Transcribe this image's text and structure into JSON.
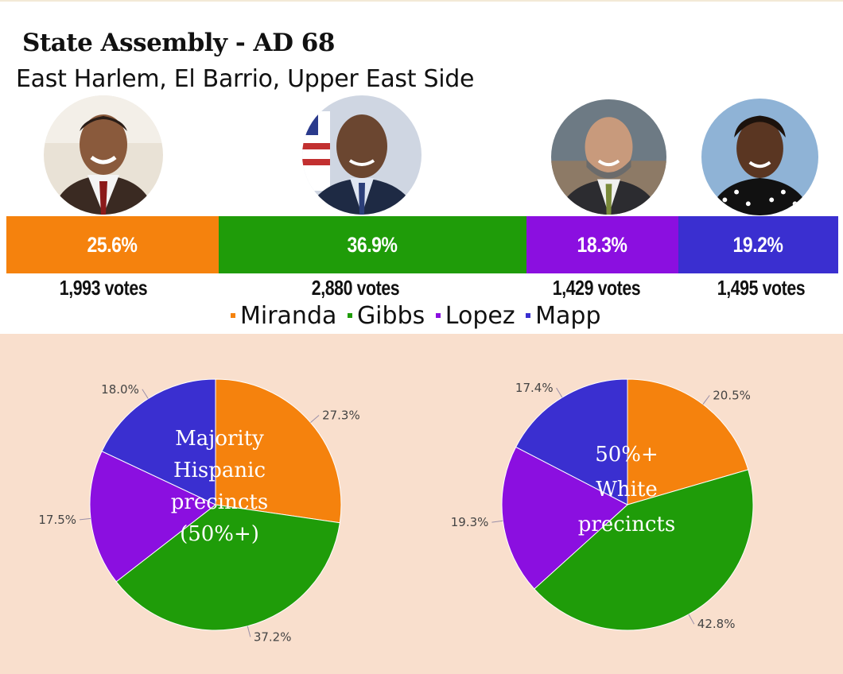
{
  "header": {
    "title": "State Assembly - AD 68",
    "subtitle": "East Harlem, El Barrio, Upper East Side"
  },
  "colors": {
    "Miranda": "#f5820d",
    "Gibbs": "#1f9c09",
    "Lopez": "#8b0fe0",
    "Mapp": "#3a2fd0"
  },
  "candidates": [
    {
      "name": "Miranda",
      "percent": "25.6%",
      "votes": "1,993 votes"
    },
    {
      "name": "Gibbs",
      "percent": "36.9%",
      "votes": "2,880 votes"
    },
    {
      "name": "Lopez",
      "percent": "18.3%",
      "votes": "1,429 votes"
    },
    {
      "name": "Mapp",
      "percent": "19.2%",
      "votes": "1,495 votes"
    }
  ],
  "legend": [
    "Miranda",
    "Gibbs",
    "Lopez",
    "Mapp"
  ],
  "chart_data": [
    {
      "type": "bar",
      "title": "State Assembly - AD 68",
      "subtitle": "East Harlem, El Barrio, Upper East Side",
      "categories": [
        "Miranda",
        "Gibbs",
        "Lopez",
        "Mapp"
      ],
      "values": [
        25.6,
        36.9,
        18.3,
        19.2
      ],
      "votes": [
        1993,
        2880,
        1429,
        1495
      ],
      "stacked": true,
      "unit": "percent"
    },
    {
      "type": "pie",
      "title": "Majority Hispanic precincts (50%+)",
      "title_lines": [
        "Majority",
        "Hispanic",
        "precincts",
        "(50%+)"
      ],
      "categories": [
        "Miranda",
        "Gibbs",
        "Lopez",
        "Mapp"
      ],
      "values": [
        27.3,
        37.2,
        17.5,
        18.0
      ],
      "labels": [
        "27.3%",
        "37.2%",
        "17.5%",
        "18.0%"
      ]
    },
    {
      "type": "pie",
      "title": "50%+ White precincts",
      "title_lines": [
        "50%+",
        "White",
        "precincts"
      ],
      "categories": [
        "Miranda",
        "Gibbs",
        "Lopez",
        "Mapp"
      ],
      "values": [
        20.5,
        42.8,
        19.3,
        17.4
      ],
      "labels": [
        "20.5%",
        "42.8%",
        "19.3%",
        "17.4%"
      ]
    }
  ]
}
